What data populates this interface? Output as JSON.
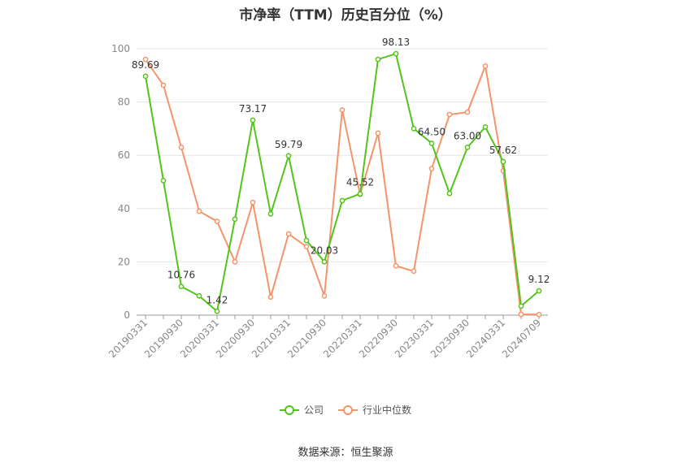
{
  "title": "市净率（TTM）历史百分位（%）",
  "source_text": "数据来源：恒生聚源",
  "colors": {
    "company": "#52c41a",
    "industry": "#f4946b",
    "grid": "#e6e6e6",
    "axis_text": "#888888"
  },
  "chart_data": {
    "type": "line",
    "title": "市净率（TTM）历史百分位（%）",
    "xlabel": "",
    "ylabel": "",
    "ylim": [
      0,
      100
    ],
    "yticks": [
      0,
      20,
      40,
      60,
      80,
      100
    ],
    "grid": true,
    "legend_position": "bottom",
    "x": [
      "20190331",
      "20190630",
      "20190930",
      "20191231",
      "20200331",
      "20200630",
      "20200930",
      "20201231",
      "20210331",
      "20210630",
      "20210930",
      "20211231",
      "20220331",
      "20220630",
      "20220930",
      "20221231",
      "20230331",
      "20230630",
      "20230930",
      "20231231",
      "20240331",
      "20240630",
      "20240709"
    ],
    "x_tick_labels": [
      "20190331",
      "20190930",
      "20200331",
      "20200930",
      "20210331",
      "20210930",
      "20220331",
      "20220930",
      "20230331",
      "20230930",
      "20240331",
      "20240709"
    ],
    "series": [
      {
        "name": "公司",
        "values": [
          89.69,
          50.5,
          10.76,
          7.2,
          1.42,
          36.0,
          73.17,
          38.0,
          59.79,
          28.0,
          20.03,
          43.0,
          45.52,
          96.0,
          98.13,
          70.0,
          64.5,
          45.7,
          63.0,
          70.6,
          57.62,
          3.4,
          9.12
        ],
        "labels": {
          "0": "89.69",
          "2": "10.76",
          "4": "1.42",
          "6": "73.17",
          "8": "59.79",
          "10": "20.03",
          "12": "45.52",
          "14": "98.13",
          "16": "64.50",
          "18": "63.00",
          "20": "57.62",
          "22": "9.12"
        }
      },
      {
        "name": "行业中位数",
        "values": [
          96.0,
          86.3,
          63.0,
          39.0,
          35.2,
          20.0,
          42.3,
          6.8,
          30.5,
          25.7,
          7.2,
          77.0,
          45.3,
          68.3,
          18.5,
          16.5,
          55.0,
          75.3,
          76.2,
          93.5,
          54.2,
          0.3,
          0.2
        ]
      }
    ]
  }
}
